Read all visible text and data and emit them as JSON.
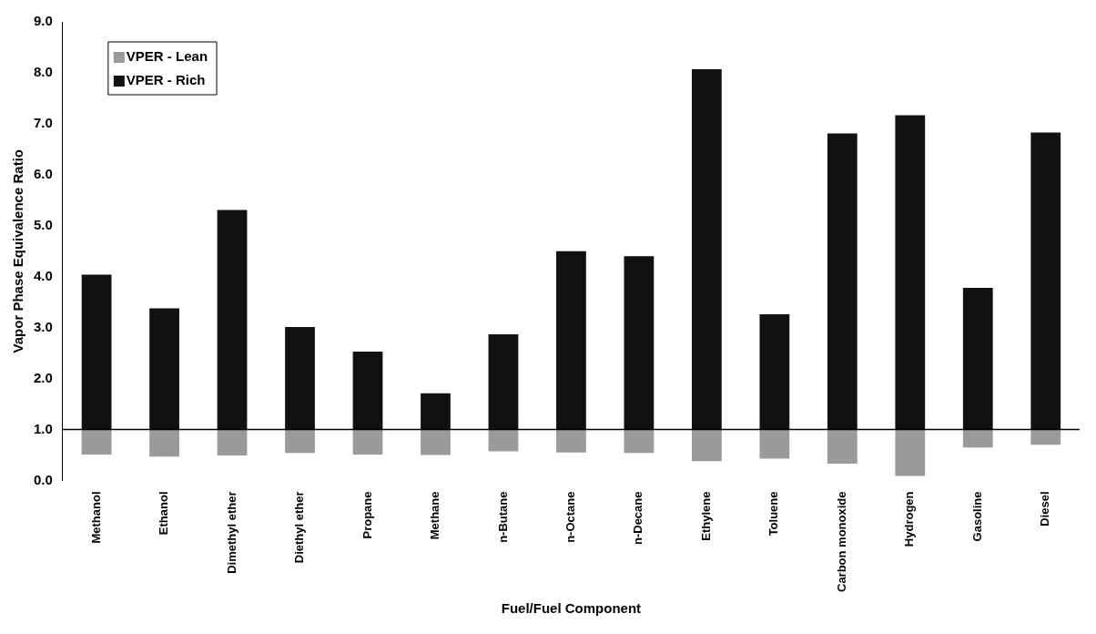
{
  "chart_data": {
    "type": "bar",
    "xlabel": "Fuel/Fuel Component",
    "ylabel": "Vapor Phase Equivalence Ratio",
    "categories": [
      "Methanol",
      "Ethanol",
      "Dimethyl ether",
      "Diethyl ether",
      "Propane",
      "Methane",
      "n-Butane",
      "n-Octane",
      "n-Decane",
      "Ethylene",
      "Toluene",
      "Carbon monoxide",
      "Hydrogen",
      "Gasoline",
      "Diesel"
    ],
    "series": [
      {
        "name": "VPER - Lean",
        "color": "#9a9a9a",
        "base": [
          1,
          1,
          1,
          1,
          1,
          1,
          1,
          1,
          1,
          1,
          1,
          1,
          1,
          1,
          1
        ],
        "values": [
          -0.49,
          -0.53,
          -0.51,
          -0.46,
          -0.49,
          -0.5,
          -0.43,
          -0.45,
          -0.46,
          -0.62,
          -0.57,
          -0.67,
          -0.91,
          -0.35,
          -0.3
        ]
      },
      {
        "name": "VPER - Rich",
        "color": "#111111",
        "base": [
          1,
          1,
          1,
          1,
          1,
          1,
          1,
          1,
          1,
          1,
          1,
          1,
          1,
          1,
          1
        ],
        "values": [
          3.04,
          2.38,
          4.31,
          2.01,
          1.53,
          0.71,
          1.87,
          3.5,
          3.4,
          7.07,
          2.26,
          5.81,
          6.17,
          2.78,
          5.83
        ]
      }
    ],
    "ylim": [
      0,
      9
    ],
    "yticks": [
      {
        "value": 0,
        "label": "0.0"
      },
      {
        "value": 1,
        "label": "1.0"
      },
      {
        "value": 2,
        "label": "2.0"
      },
      {
        "value": 3,
        "label": "3.0"
      },
      {
        "value": 4,
        "label": "4.0"
      },
      {
        "value": 5,
        "label": "5.0"
      },
      {
        "value": 6,
        "label": "6.0"
      },
      {
        "value": 7,
        "label": "7.0"
      },
      {
        "value": 8,
        "label": "8.0"
      },
      {
        "value": 9,
        "label": "9.0"
      }
    ],
    "ref_lines": [
      {
        "axis": "y",
        "value": 1,
        "color": "#000000"
      }
    ],
    "grid": false,
    "legend": "top left"
  }
}
